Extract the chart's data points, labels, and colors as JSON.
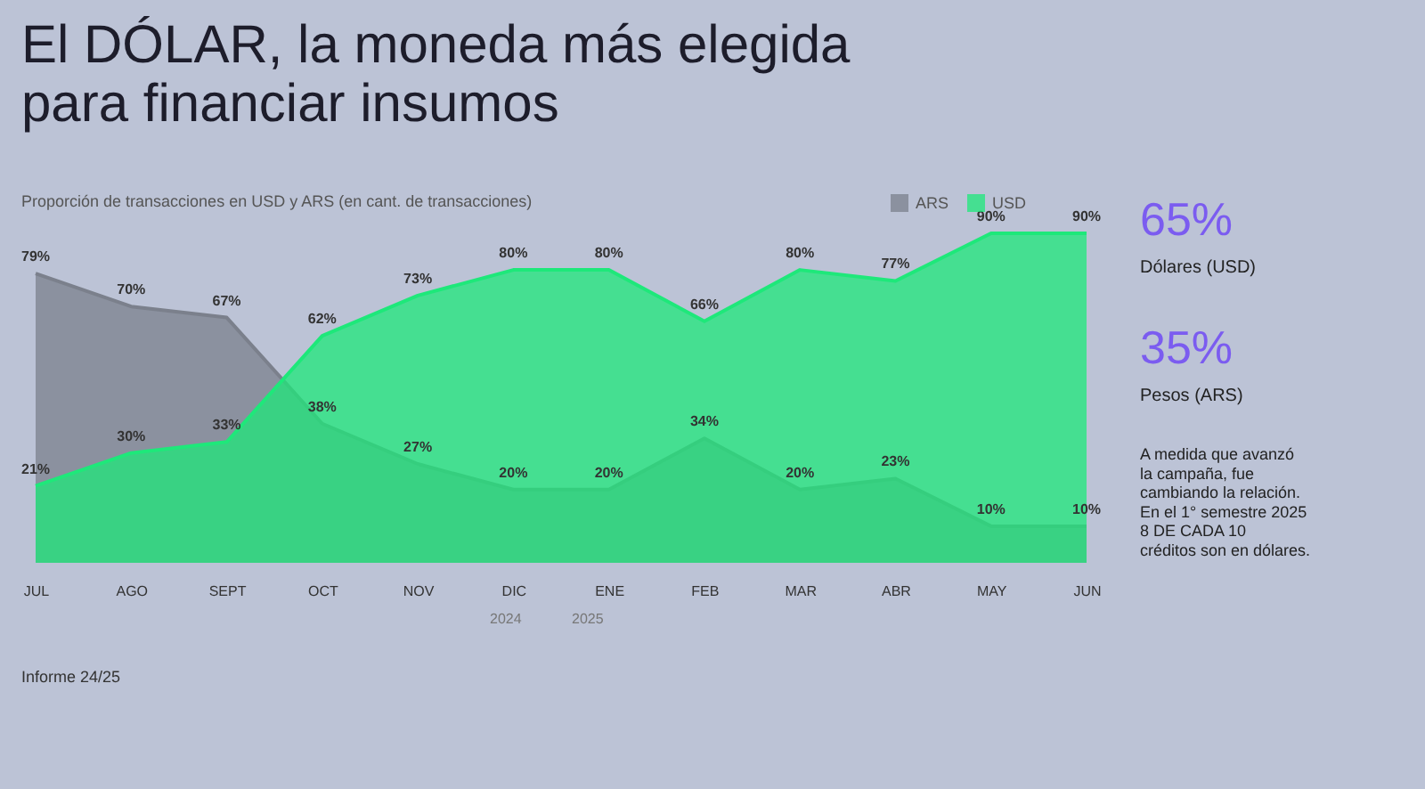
{
  "chart_data": {
    "type": "area",
    "title": "El DÓLAR, la moneda más elegida\npara financiar insumos",
    "subtitle": "Proporción de transacciones en USD y ARS (en cant. de transacciones)",
    "categories": [
      "JUL",
      "AGO",
      "SEPT",
      "OCT",
      "NOV",
      "DIC",
      "ENE",
      "FEB",
      "MAR",
      "ABR",
      "MAY",
      "JUN"
    ],
    "series": [
      {
        "name": "ARS",
        "color": "#7b808c",
        "values": [
          79,
          70,
          67,
          38,
          27,
          20,
          20,
          34,
          20,
          23,
          10,
          10
        ],
        "value_labels": [
          "79%",
          "70%",
          "67%",
          "38%",
          "27%",
          "20%",
          "20%",
          "34%",
          "20%",
          "23%",
          "10%",
          "10%"
        ]
      },
      {
        "name": "USD",
        "color": "#1ee87a",
        "values": [
          21,
          30,
          33,
          62,
          73,
          80,
          80,
          66,
          80,
          77,
          90,
          90
        ],
        "value_labels": [
          "21%",
          "30%",
          "33%",
          "62%",
          "73%",
          "80%",
          "80%",
          "66%",
          "80%",
          "77%",
          "90%",
          "90%"
        ]
      }
    ],
    "legend": "top right",
    "grid": false,
    "annotations": [
      "65%",
      "Dólares (USD)",
      "35%",
      "Pesos (ARS)",
      "A medida que avanzó\nla campaña, fue\ncambiando la relación.\nEn el 1° semestre 2025\n8 DE CADA 10\ncréditos son en dólares.",
      "2024",
      "2025",
      "Informe 24/25"
    ]
  }
}
